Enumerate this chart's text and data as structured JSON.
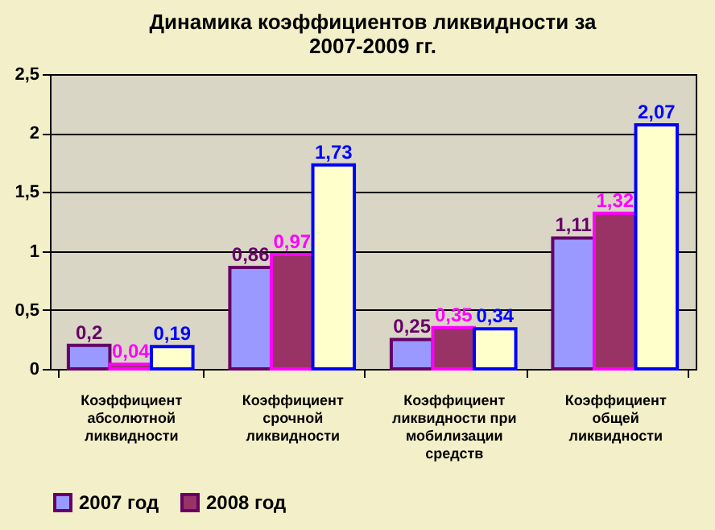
{
  "chart_data": {
    "type": "bar",
    "title": "Динамика коэффициентов ликвидности за 2007-2009 гг.",
    "categories": [
      "Коэффициент абсолютной ликвидности",
      "Коэффициент срочной ликвидности",
      "Коэффициент ликвидности при мобилизации средств",
      "Коэффициент общей ликвидности"
    ],
    "series": [
      {
        "name": "2007 год",
        "color": "#9999ff",
        "values": [
          0.2,
          0.86,
          0.25,
          1.11
        ],
        "value_labels": [
          "0,2",
          "0,86",
          "0,25",
          "1,11"
        ]
      },
      {
        "name": "2008 год",
        "color": "#993366",
        "values": [
          0.04,
          0.97,
          0.35,
          1.32
        ],
        "value_labels": [
          "0,04",
          "0,97",
          "0,35",
          "1,32"
        ]
      },
      {
        "color": "#ffffcc",
        "values": [
          0.19,
          1.73,
          0.34,
          2.07
        ],
        "value_labels": [
          "0,19",
          "1,73",
          "0,34",
          "2,07"
        ]
      }
    ],
    "ylim": [
      0,
      2.5
    ],
    "yticks": [
      0,
      {
        "value": 0.5,
        "label": "0,5"
      },
      1,
      {
        "value": 1.5,
        "label": "1,5"
      },
      2,
      {
        "value": 2.5,
        "label": "2,5"
      }
    ],
    "grid": "y",
    "legend": "bottom"
  }
}
